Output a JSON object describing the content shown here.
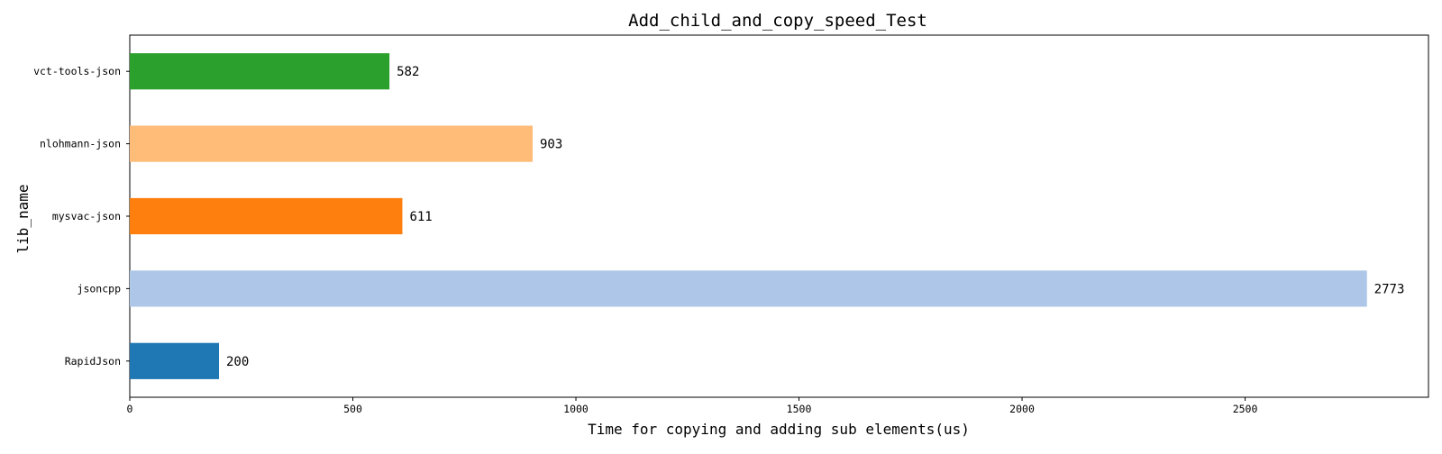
{
  "chart_data": {
    "type": "bar",
    "orientation": "horizontal",
    "title": "Add_child_and_copy_speed_Test",
    "xlabel": "Time for copying and adding sub elements(us)",
    "ylabel": "lib_name",
    "categories": [
      "RapidJson",
      "jsoncpp",
      "mysvac-json",
      "nlohmann-json",
      "vct-tools-json"
    ],
    "values": [
      200,
      2773,
      611,
      903,
      582
    ],
    "colors": [
      "#1f77b4",
      "#aec7e8",
      "#ff7f0e",
      "#ffbb78",
      "#2ca02c"
    ],
    "xlim": [
      0,
      2911
    ],
    "xticks": [
      0,
      500,
      1000,
      1500,
      2000,
      2500
    ],
    "grid": false,
    "legend": "none"
  }
}
